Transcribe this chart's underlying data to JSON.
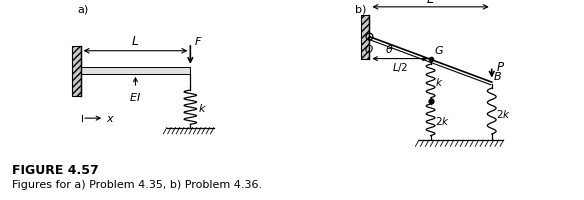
{
  "fig_title": "FIGURE 4.57",
  "fig_caption": "Figures for a) Problem 4.35, b) Problem 4.36.",
  "title_fontsize": 9,
  "caption_fontsize": 8,
  "label_a": "a)",
  "label_b": "b)",
  "bg_color": "#ffffff"
}
